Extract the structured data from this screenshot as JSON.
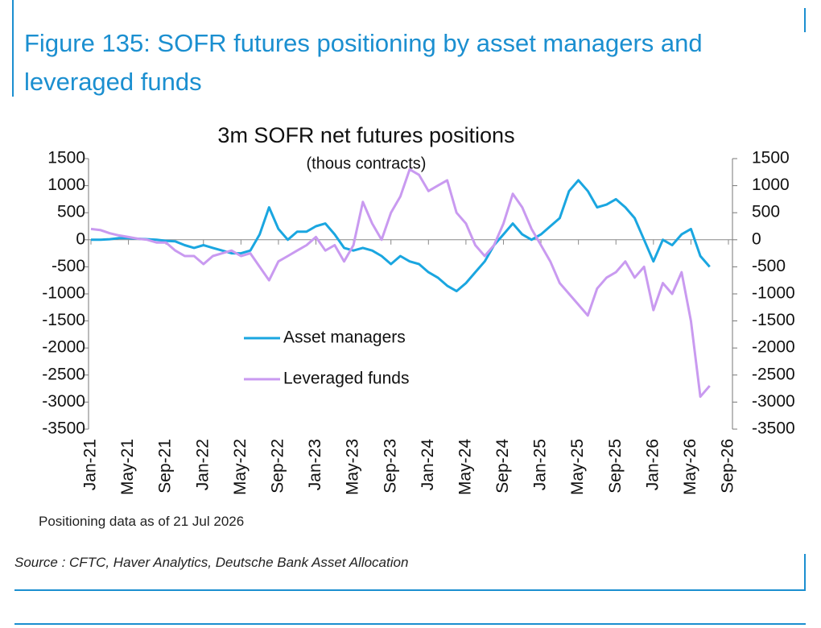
{
  "figure_title": "Figure 135: SOFR futures positioning by asset managers and leveraged funds",
  "note": "Positioning data as of 21 Jul 2026",
  "source": "Source : CFTC, Haver Analytics, Deutsche Bank Asset Allocation",
  "chart_data": {
    "type": "line",
    "title": "3m SOFR net futures positions",
    "subtitle": "(thous contracts)",
    "categories": [
      "Jan-21",
      null,
      null,
      null,
      "May-21",
      null,
      null,
      null,
      "Sep-21",
      null,
      null,
      null,
      "Jan-22",
      null,
      null,
      null,
      "May-22",
      null,
      null,
      null,
      "Sep-22",
      null,
      null,
      null,
      "Jan-23",
      null,
      null,
      null,
      "May-23",
      null,
      null,
      null,
      "Sep-23",
      null,
      null,
      null,
      "Jan-24",
      null,
      null,
      null,
      "May-24",
      null,
      null,
      null,
      "Sep-24",
      null,
      null,
      null,
      "Jan-25",
      null,
      null,
      null,
      "May-25",
      null,
      null,
      null,
      "Sep-25",
      null,
      null,
      null,
      "Jan-26",
      null,
      null,
      null,
      "May-26",
      null,
      null,
      null,
      "Sep-26"
    ],
    "series": [
      {
        "name": "Asset managers",
        "color": "#1aa6e0",
        "values": [
          0,
          0,
          10,
          30,
          30,
          20,
          10,
          0,
          -20,
          -30,
          -100,
          -150,
          -100,
          -150,
          -200,
          -250,
          -250,
          -200,
          100,
          600,
          200,
          0,
          150,
          150,
          250,
          300,
          100,
          -150,
          -200,
          -150,
          -200,
          -300,
          -450,
          -300,
          -400,
          -450,
          -600,
          -700,
          -850,
          -950,
          -800,
          -600,
          -400,
          -100,
          100,
          300,
          100,
          0,
          100,
          250,
          400,
          900,
          1100,
          900,
          600,
          650,
          750,
          600,
          400,
          0,
          -400,
          0,
          -100,
          100,
          200,
          -300,
          -500,
          null,
          null
        ]
      },
      {
        "name": "Leveraged funds",
        "color": "#c99af0",
        "values": [
          200,
          180,
          120,
          80,
          50,
          20,
          0,
          -50,
          -50,
          -200,
          -300,
          -300,
          -450,
          -300,
          -250,
          -200,
          -300,
          -250,
          -500,
          -750,
          -400,
          -300,
          -200,
          -100,
          50,
          -200,
          -100,
          -400,
          -100,
          700,
          300,
          0,
          500,
          800,
          1300,
          1200,
          900,
          1000,
          1100,
          500,
          300,
          -100,
          -300,
          -100,
          300,
          850,
          600,
          200,
          -100,
          -400,
          -800,
          -1000,
          -1200,
          -1400,
          -900,
          -700,
          -600,
          -400,
          -700,
          -500,
          -1300,
          -800,
          -1000,
          -600,
          -1500,
          -2900,
          -2700,
          null,
          null
        ]
      }
    ],
    "ylim": [
      -3500,
      1500
    ],
    "yticks": [
      -3500,
      -3000,
      -2500,
      -2000,
      -1500,
      -1000,
      -500,
      0,
      500,
      1000,
      1500
    ],
    "y2lim": [
      -3500,
      1500
    ],
    "y2ticks": [
      -3500,
      -3000,
      -2500,
      -2000,
      -1500,
      -1000,
      -500,
      0,
      500,
      1000,
      1500
    ]
  }
}
